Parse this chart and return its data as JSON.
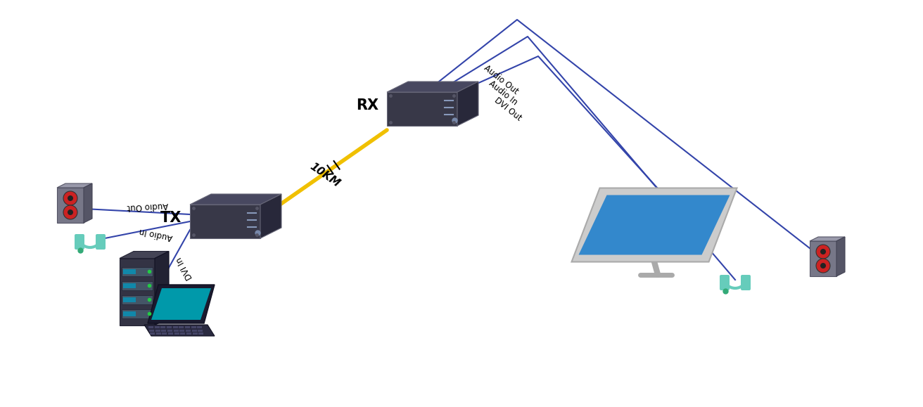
{
  "bg_color": "#ffffff",
  "wire_color": "#3344aa",
  "fiber_color": "#f0c000",
  "tx_label": "TX",
  "rx_label": "RX",
  "distance_label": "10KM",
  "tx_audio_out": "Audio Out",
  "tx_audio_in": "Audio In",
  "tx_dvi_in": "DVI In",
  "rx_audio_out": "Audio Out",
  "rx_audio_in": "Audio In",
  "rx_dvi_out": "DVI Out",
  "box_front": "#383848",
  "box_top": "#484860",
  "box_side": "#28283a",
  "box_edge": "#666677",
  "monitor_screen": "#3388cc",
  "monitor_bezel": "#cccccc",
  "speaker_body": "#888888",
  "headphone_color": "#66ccbb",
  "server_dark": "#333344",
  "server_mid": "#555566",
  "server_shelf": "#1188aa",
  "laptop_screen": "#0099aa",
  "laptop_body": "#1a1a2e",
  "laptop_kbd": "#222244"
}
